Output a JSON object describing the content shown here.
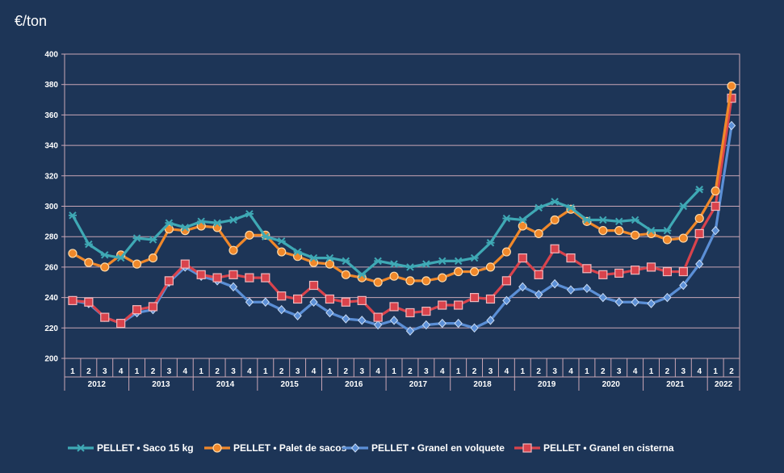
{
  "chart_data": {
    "type": "line",
    "ylabel": "€/ton",
    "ylim": [
      200,
      400
    ],
    "yticks": [
      200,
      220,
      240,
      260,
      280,
      300,
      320,
      340,
      360,
      380,
      400
    ],
    "years": [
      {
        "label": "2012",
        "quarters": [
          "1",
          "2",
          "3",
          "4"
        ]
      },
      {
        "label": "2013",
        "quarters": [
          "1",
          "2",
          "3",
          "4"
        ]
      },
      {
        "label": "2014",
        "quarters": [
          "1",
          "2",
          "3",
          "4"
        ]
      },
      {
        "label": "2015",
        "quarters": [
          "1",
          "2",
          "3",
          "4"
        ]
      },
      {
        "label": "2016",
        "quarters": [
          "1",
          "2",
          "3",
          "4"
        ]
      },
      {
        "label": "2017",
        "quarters": [
          "1",
          "2",
          "3",
          "4"
        ]
      },
      {
        "label": "2018",
        "quarters": [
          "1",
          "2",
          "3",
          "4"
        ]
      },
      {
        "label": "2019",
        "quarters": [
          "1",
          "2",
          "3",
          "4"
        ]
      },
      {
        "label": "2020",
        "quarters": [
          "1",
          "2",
          "3",
          "4"
        ]
      },
      {
        "label": "2021",
        "quarters": [
          "1",
          "2",
          "3",
          "4"
        ]
      },
      {
        "label": "2022",
        "quarters": [
          "1",
          "2"
        ]
      }
    ],
    "grid": true,
    "legend_position": "bottom",
    "series": [
      {
        "name": "PELLET • Saco 15 kg",
        "color": "#3fa9b5",
        "marker": "star",
        "values": [
          294,
          275,
          268,
          266,
          279,
          278,
          289,
          286,
          290,
          289,
          291,
          295,
          280,
          277,
          270,
          266,
          266,
          264,
          255,
          264,
          262,
          260,
          262,
          264,
          264,
          266,
          276,
          292,
          291,
          299,
          303,
          299,
          291,
          291,
          290,
          291,
          284,
          284,
          300,
          311
        ]
      },
      {
        "name": "PELLET •  Palet de sacos",
        "color": "#f0882a",
        "marker": "circle",
        "values": [
          269,
          263,
          260,
          268,
          262,
          266,
          285,
          284,
          287,
          286,
          271,
          281,
          281,
          270,
          267,
          263,
          262,
          255,
          253,
          250,
          254,
          251,
          251,
          253,
          257,
          257,
          260,
          270,
          287,
          282,
          291,
          298,
          290,
          284,
          284,
          281,
          282,
          278,
          279,
          292,
          310,
          379
        ]
      },
      {
        "name": "PELLET • Granel en volquete",
        "color": "#5b8fd6",
        "marker": "diamond",
        "values": [
          238,
          236,
          227,
          223,
          230,
          232,
          250,
          260,
          254,
          251,
          247,
          237,
          237,
          232,
          228,
          237,
          230,
          226,
          225,
          222,
          225,
          218,
          222,
          223,
          223,
          220,
          225,
          238,
          247,
          242,
          249,
          245,
          246,
          240,
          237,
          237,
          236,
          240,
          248,
          262,
          284,
          353
        ]
      },
      {
        "name": "PELLET • Granel en cisterna",
        "color": "#d9434c",
        "marker": "square",
        "values": [
          238,
          237,
          227,
          223,
          232,
          234,
          251,
          262,
          255,
          253,
          255,
          253,
          253,
          241,
          239,
          248,
          239,
          237,
          238,
          227,
          234,
          230,
          231,
          235,
          235,
          240,
          239,
          251,
          266,
          255,
          272,
          266,
          259,
          255,
          256,
          258,
          260,
          257,
          257,
          282,
          300,
          371
        ]
      }
    ]
  }
}
